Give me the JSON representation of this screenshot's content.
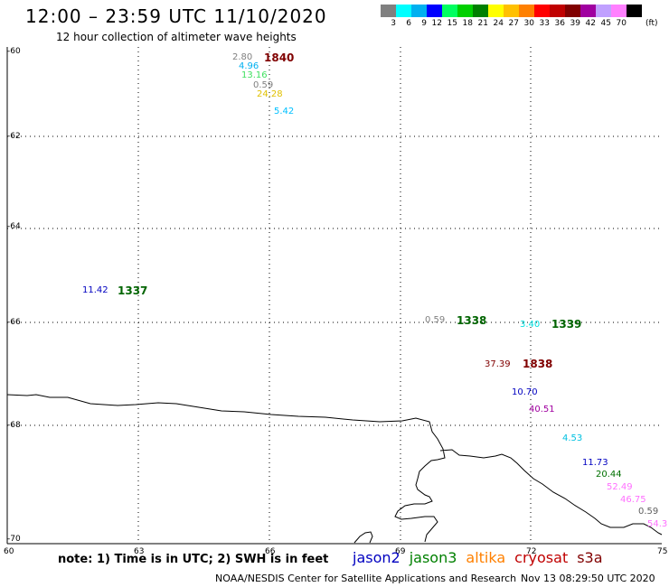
{
  "header": {
    "title": "12:00 – 23:59 UTC 11/10/2020",
    "subtitle": "12 hour collection of altimeter wave heights"
  },
  "legend": {
    "colors": [
      "#808080",
      "#00ffff",
      "#00b0f0",
      "#0000ff",
      "#00ff60",
      "#00d000",
      "#008000",
      "#ffff00",
      "#ffc000",
      "#ff8000",
      "#ff0000",
      "#c00000",
      "#800000",
      "#a000a0",
      "#c0a0ff",
      "#ff80ff",
      "#000000"
    ],
    "labels": [
      "3",
      "6",
      "9",
      "12",
      "15",
      "18",
      "21",
      "24",
      "27",
      "30",
      "33",
      "36",
      "39",
      "42",
      "45",
      "70"
    ],
    "unit": "(ft)"
  },
  "axes": {
    "y_labels": [
      "-60",
      "-62",
      "-64",
      "-66",
      "-68",
      "-70"
    ],
    "x_labels": [
      "60",
      "63",
      "66",
      "69",
      "72",
      "75"
    ]
  },
  "passes": [
    {
      "text": "1840",
      "color": "#800000"
    },
    {
      "text": "1337",
      "color": "#006400"
    },
    {
      "text": "1338",
      "color": "#006400"
    },
    {
      "text": "1339",
      "color": "#006400"
    },
    {
      "text": "1838",
      "color": "#800000"
    }
  ],
  "readings": [
    {
      "text": "2.80",
      "color": "#808080"
    },
    {
      "text": "4.96",
      "color": "#00b0f0"
    },
    {
      "text": "13.16",
      "color": "#40e060"
    },
    {
      "text": "0.59",
      "color": "#808080"
    },
    {
      "text": "24.28",
      "color": "#e0c000"
    },
    {
      "text": "5.42",
      "color": "#00c0ff"
    },
    {
      "text": "11.42",
      "color": "#0000c0"
    },
    {
      "text": "0.59",
      "color": "#808080"
    },
    {
      "text": "3.40",
      "color": "#00e0e0"
    },
    {
      "text": "37.39",
      "color": "#800000"
    },
    {
      "text": "10.70",
      "color": "#0000c0"
    },
    {
      "text": "40.51",
      "color": "#a000a0"
    },
    {
      "text": "4.53",
      "color": "#00c0e0"
    },
    {
      "text": "11.73",
      "color": "#0000c0"
    },
    {
      "text": "20.44",
      "color": "#007000"
    },
    {
      "text": "52.49",
      "color": "#ff70ff"
    },
    {
      "text": "46.75",
      "color": "#ff70ff"
    },
    {
      "text": "0.59",
      "color": "#606060"
    },
    {
      "text": "54.3",
      "color": "#ff70ff"
    }
  ],
  "note": "note:  1) Time is in UTC;  2) SWH is in feet",
  "satellites": [
    {
      "name": "jason2",
      "color": "#0000c0"
    },
    {
      "name": "jason3",
      "color": "#008000"
    },
    {
      "name": "altika",
      "color": "#ff8000"
    },
    {
      "name": "cryosat",
      "color": "#c00000"
    },
    {
      "name": "s3a",
      "color": "#800000"
    }
  ],
  "footer": {
    "credit": "NOAA/NESDIS Center for Satellite Applications and Research",
    "timestamp": "Nov 13 08:29:50 UTC 2020"
  }
}
